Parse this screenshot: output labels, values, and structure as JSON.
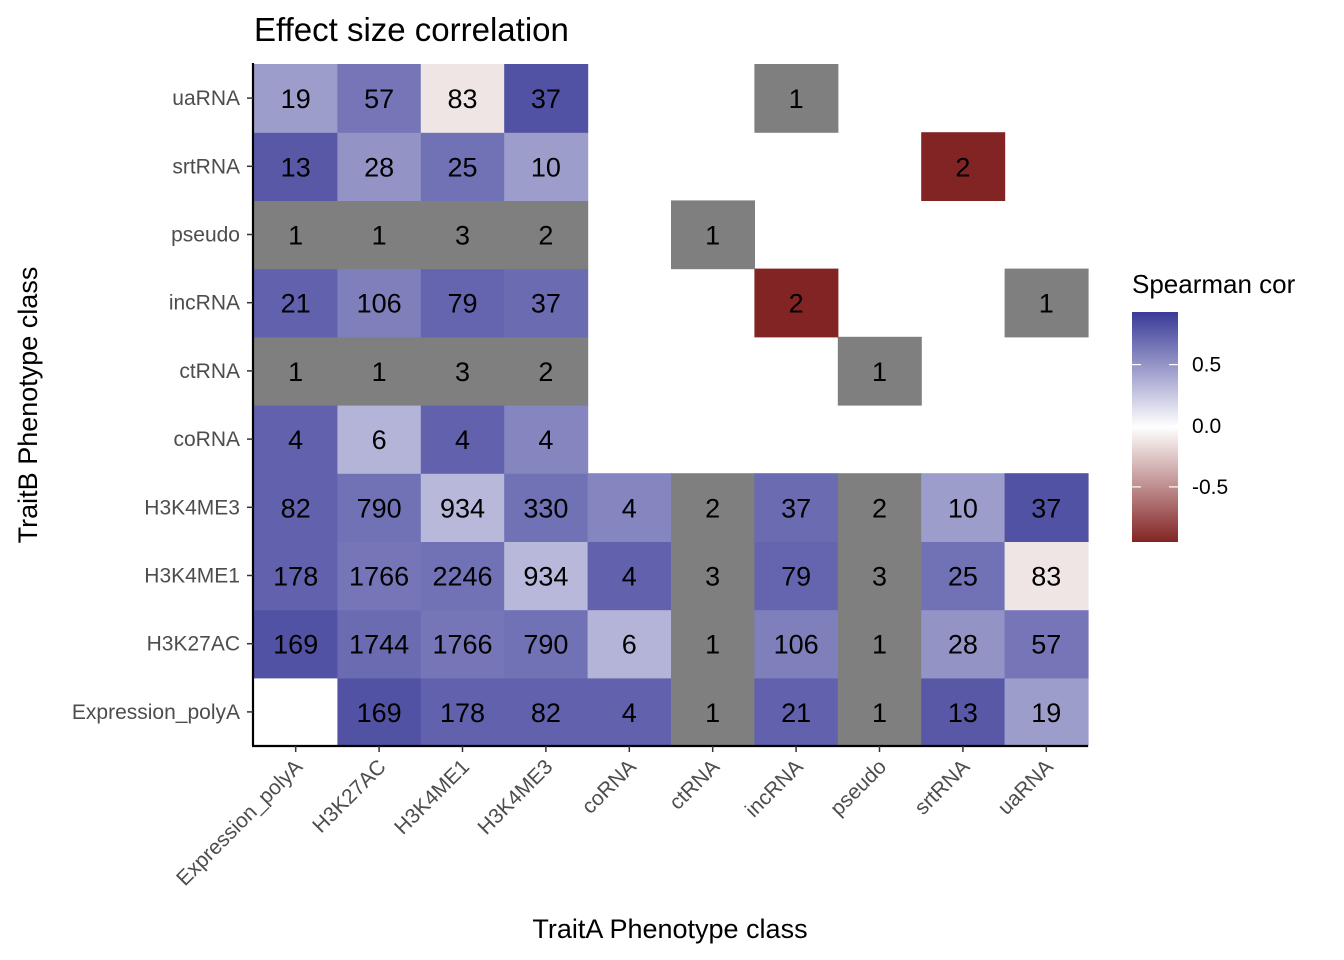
{
  "chart_data": {
    "type": "heatmap",
    "title": "Effect size correlation",
    "xlabel": "TraitA Phenotype class",
    "ylabel": "TraitB Phenotype class",
    "x_categories": [
      "Expression_polyA",
      "H3K27AC",
      "H3K4ME1",
      "H3K4ME3",
      "coRNA",
      "ctRNA",
      "incRNA",
      "pseudo",
      "srtRNA",
      "uaRNA"
    ],
    "y_categories": [
      "Expression_polyA",
      "H3K27AC",
      "H3K4ME1",
      "H3K4ME3",
      "coRNA",
      "ctRNA",
      "incRNA",
      "pseudo",
      "srtRNA",
      "uaRNA"
    ],
    "cells": [
      {
        "x": "H3K27AC",
        "y": "Expression_polyA",
        "n": 169,
        "cor": 0.88
      },
      {
        "x": "H3K4ME1",
        "y": "Expression_polyA",
        "n": 178,
        "cor": 0.8
      },
      {
        "x": "H3K4ME3",
        "y": "Expression_polyA",
        "n": 82,
        "cor": 0.8
      },
      {
        "x": "coRNA",
        "y": "Expression_polyA",
        "n": 4,
        "cor": 0.8
      },
      {
        "x": "ctRNA",
        "y": "Expression_polyA",
        "n": 1,
        "cor": null
      },
      {
        "x": "incRNA",
        "y": "Expression_polyA",
        "n": 21,
        "cor": 0.8
      },
      {
        "x": "pseudo",
        "y": "Expression_polyA",
        "n": 1,
        "cor": null
      },
      {
        "x": "srtRNA",
        "y": "Expression_polyA",
        "n": 13,
        "cor": 0.85
      },
      {
        "x": "uaRNA",
        "y": "Expression_polyA",
        "n": 19,
        "cor": 0.5
      },
      {
        "x": "Expression_polyA",
        "y": "H3K27AC",
        "n": 169,
        "cor": 0.88
      },
      {
        "x": "H3K27AC",
        "y": "H3K27AC",
        "n": 1744,
        "cor": 0.75
      },
      {
        "x": "H3K4ME1",
        "y": "H3K27AC",
        "n": 1766,
        "cor": 0.7
      },
      {
        "x": "H3K4ME3",
        "y": "H3K27AC",
        "n": 790,
        "cor": 0.72
      },
      {
        "x": "coRNA",
        "y": "H3K27AC",
        "n": 6,
        "cor": 0.38
      },
      {
        "x": "ctRNA",
        "y": "H3K27AC",
        "n": 1,
        "cor": null
      },
      {
        "x": "incRNA",
        "y": "H3K27AC",
        "n": 106,
        "cor": 0.65
      },
      {
        "x": "pseudo",
        "y": "H3K27AC",
        "n": 1,
        "cor": null
      },
      {
        "x": "srtRNA",
        "y": "H3K27AC",
        "n": 28,
        "cor": 0.55
      },
      {
        "x": "uaRNA",
        "y": "H3K27AC",
        "n": 57,
        "cor": 0.7
      },
      {
        "x": "Expression_polyA",
        "y": "H3K4ME1",
        "n": 178,
        "cor": 0.8
      },
      {
        "x": "H3K27AC",
        "y": "H3K4ME1",
        "n": 1766,
        "cor": 0.7
      },
      {
        "x": "H3K4ME1",
        "y": "H3K4ME1",
        "n": 2246,
        "cor": 0.72
      },
      {
        "x": "H3K4ME3",
        "y": "H3K4ME1",
        "n": 934,
        "cor": 0.36
      },
      {
        "x": "coRNA",
        "y": "H3K4ME1",
        "n": 4,
        "cor": 0.8
      },
      {
        "x": "ctRNA",
        "y": "H3K4ME1",
        "n": 3,
        "cor": null
      },
      {
        "x": "incRNA",
        "y": "H3K4ME1",
        "n": 79,
        "cor": 0.78
      },
      {
        "x": "pseudo",
        "y": "H3K4ME1",
        "n": 3,
        "cor": null
      },
      {
        "x": "srtRNA",
        "y": "H3K4ME1",
        "n": 25,
        "cor": 0.72
      },
      {
        "x": "uaRNA",
        "y": "H3K4ME1",
        "n": 83,
        "cor": -0.12
      },
      {
        "x": "Expression_polyA",
        "y": "H3K4ME3",
        "n": 82,
        "cor": 0.8
      },
      {
        "x": "H3K27AC",
        "y": "H3K4ME3",
        "n": 790,
        "cor": 0.72
      },
      {
        "x": "H3K4ME1",
        "y": "H3K4ME3",
        "n": 934,
        "cor": 0.36
      },
      {
        "x": "H3K4ME3",
        "y": "H3K4ME3",
        "n": 330,
        "cor": 0.72
      },
      {
        "x": "coRNA",
        "y": "H3K4ME3",
        "n": 4,
        "cor": 0.62
      },
      {
        "x": "ctRNA",
        "y": "H3K4ME3",
        "n": 2,
        "cor": null
      },
      {
        "x": "incRNA",
        "y": "H3K4ME3",
        "n": 37,
        "cor": 0.75
      },
      {
        "x": "pseudo",
        "y": "H3K4ME3",
        "n": 2,
        "cor": null
      },
      {
        "x": "srtRNA",
        "y": "H3K4ME3",
        "n": 10,
        "cor": 0.5
      },
      {
        "x": "uaRNA",
        "y": "H3K4ME3",
        "n": 37,
        "cor": 0.88
      },
      {
        "x": "Expression_polyA",
        "y": "coRNA",
        "n": 4,
        "cor": 0.8
      },
      {
        "x": "H3K27AC",
        "y": "coRNA",
        "n": 6,
        "cor": 0.38
      },
      {
        "x": "H3K4ME1",
        "y": "coRNA",
        "n": 4,
        "cor": 0.8
      },
      {
        "x": "H3K4ME3",
        "y": "coRNA",
        "n": 4,
        "cor": 0.62
      },
      {
        "x": "Expression_polyA",
        "y": "ctRNA",
        "n": 1,
        "cor": null
      },
      {
        "x": "H3K27AC",
        "y": "ctRNA",
        "n": 1,
        "cor": null
      },
      {
        "x": "H3K4ME1",
        "y": "ctRNA",
        "n": 3,
        "cor": null
      },
      {
        "x": "H3K4ME3",
        "y": "ctRNA",
        "n": 2,
        "cor": null
      },
      {
        "x": "pseudo",
        "y": "ctRNA",
        "n": 1,
        "cor": null
      },
      {
        "x": "Expression_polyA",
        "y": "incRNA",
        "n": 21,
        "cor": 0.8
      },
      {
        "x": "H3K27AC",
        "y": "incRNA",
        "n": 106,
        "cor": 0.65
      },
      {
        "x": "H3K4ME1",
        "y": "incRNA",
        "n": 79,
        "cor": 0.78
      },
      {
        "x": "H3K4ME3",
        "y": "incRNA",
        "n": 37,
        "cor": 0.75
      },
      {
        "x": "incRNA",
        "y": "incRNA",
        "n": 2,
        "cor": -1.0
      },
      {
        "x": "uaRNA",
        "y": "incRNA",
        "n": 1,
        "cor": null
      },
      {
        "x": "Expression_polyA",
        "y": "pseudo",
        "n": 1,
        "cor": null
      },
      {
        "x": "H3K27AC",
        "y": "pseudo",
        "n": 1,
        "cor": null
      },
      {
        "x": "H3K4ME1",
        "y": "pseudo",
        "n": 3,
        "cor": null
      },
      {
        "x": "H3K4ME3",
        "y": "pseudo",
        "n": 2,
        "cor": null
      },
      {
        "x": "ctRNA",
        "y": "pseudo",
        "n": 1,
        "cor": null
      },
      {
        "x": "Expression_polyA",
        "y": "srtRNA",
        "n": 13,
        "cor": 0.85
      },
      {
        "x": "H3K27AC",
        "y": "srtRNA",
        "n": 28,
        "cor": 0.55
      },
      {
        "x": "H3K4ME1",
        "y": "srtRNA",
        "n": 25,
        "cor": 0.72
      },
      {
        "x": "H3K4ME3",
        "y": "srtRNA",
        "n": 10,
        "cor": 0.5
      },
      {
        "x": "srtRNA",
        "y": "srtRNA",
        "n": 2,
        "cor": -1.0
      },
      {
        "x": "Expression_polyA",
        "y": "uaRNA",
        "n": 19,
        "cor": 0.5
      },
      {
        "x": "H3K27AC",
        "y": "uaRNA",
        "n": 57,
        "cor": 0.7
      },
      {
        "x": "H3K4ME1",
        "y": "uaRNA",
        "n": 83,
        "cor": -0.12
      },
      {
        "x": "H3K4ME3",
        "y": "uaRNA",
        "n": 37,
        "cor": 0.88
      },
      {
        "x": "incRNA",
        "y": "uaRNA",
        "n": 1,
        "cor": null
      }
    ],
    "na_color": "#7f7f7f",
    "legend": {
      "title": "Spearman cor",
      "placement": "right",
      "range": [
        -1,
        1
      ],
      "ticks": [
        0.5,
        0.0,
        -0.5
      ],
      "tick_labels": [
        "0.5",
        "0.0",
        "-0.5"
      ],
      "colors": {
        "low": "#832424",
        "mid": "#ffffff",
        "high": "#3a3a98"
      }
    },
    "grid": false
  }
}
